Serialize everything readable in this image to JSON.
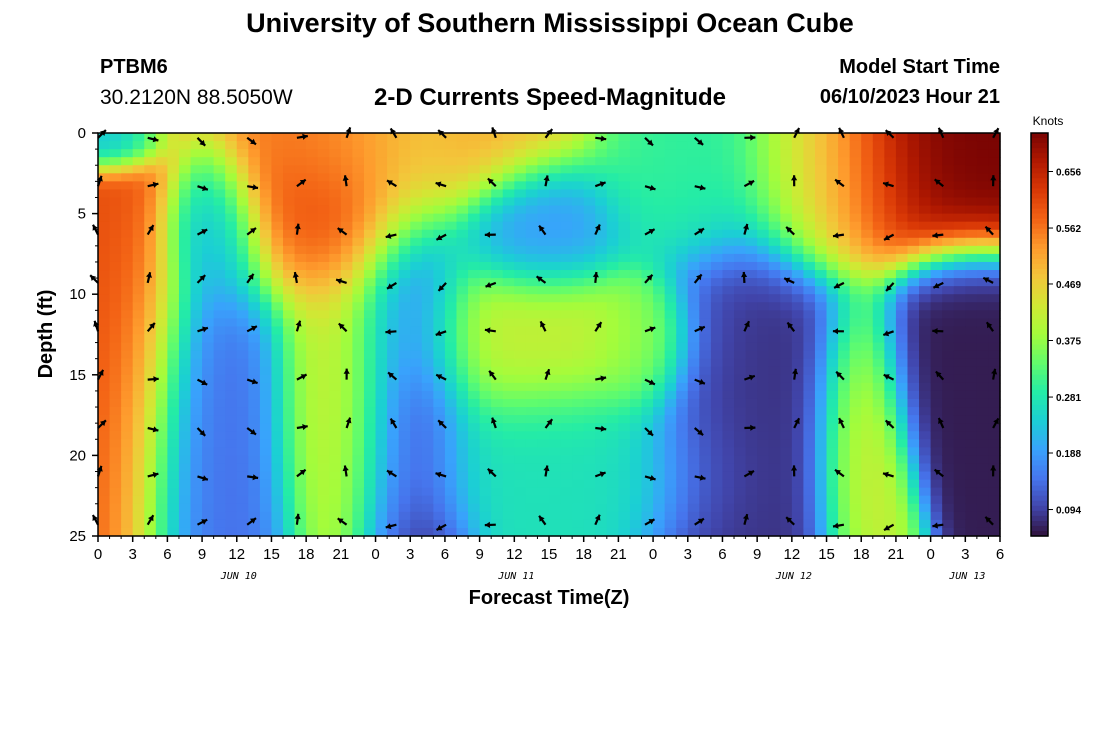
{
  "header": {
    "title": "University of Southern Mississippi Ocean Cube",
    "station_id": "PTBM6",
    "station_coords": "30.2120N  88.5050W",
    "subtitle": "2-D Currents Speed-Magnitude",
    "model_start_label": "Model Start Time",
    "model_start_value": "06/10/2023 Hour 21"
  },
  "footer": {
    "title": "University of Southern Mississippi Ocean Cube"
  },
  "chart_data": {
    "type": "heatmap",
    "title": "2-D Currents Speed-Magnitude",
    "xlabel": "Forecast Time(Z)",
    "ylabel": "Depth (ft)",
    "x_tick_labels": [
      "0",
      "3",
      "6",
      "9",
      "12",
      "15",
      "18",
      "21",
      "0",
      "3",
      "6",
      "9",
      "12",
      "15",
      "18",
      "21",
      "0",
      "3",
      "6",
      "9",
      "12",
      "15",
      "18",
      "21",
      "0",
      "3",
      "6"
    ],
    "x_day_labels": [
      {
        "label": "JUN 10",
        "tick_index": 4
      },
      {
        "label": "JUN 11",
        "tick_index": 12
      },
      {
        "label": "JUN 12",
        "tick_index": 20
      },
      {
        "label": "JUN 13",
        "tick_index": 25
      }
    ],
    "y_tick_labels": [
      "0",
      "5",
      "10",
      "15",
      "20",
      "25"
    ],
    "y_range": [
      0,
      25
    ],
    "x_range_hours": [
      0,
      78
    ],
    "colorbar": {
      "title": "Knots",
      "tick_labels": [
        "0.656",
        "0.562",
        "0.469",
        "0.375",
        "0.281",
        "0.188",
        "0.094"
      ],
      "ticks": [
        0.656,
        0.562,
        0.469,
        0.375,
        0.281,
        0.188,
        0.094
      ],
      "range": [
        0.05,
        0.72
      ],
      "colors": [
        "#30123b",
        "#4145ab",
        "#4675ed",
        "#39a2fc",
        "#1bcfd4",
        "#24eca6",
        "#61fc6c",
        "#a4fc3b",
        "#d1e834",
        "#f3c63a",
        "#fe9b2d",
        "#f36315",
        "#d93806",
        "#b11901",
        "#7a0403"
      ]
    },
    "speed_field_centers": [
      {
        "t": 1,
        "d": 0.5,
        "v": 0.16,
        "r": 3.2,
        "rd": 1.4
      },
      {
        "t": 2,
        "d": 13,
        "v": 0.6,
        "r": 4.5,
        "rd": 11
      },
      {
        "t": 10,
        "d": 18,
        "v": 0.14,
        "r": 5.5,
        "rd": 9
      },
      {
        "t": 10,
        "d": 6,
        "v": 0.2,
        "r": 3.0,
        "rd": 3.5
      },
      {
        "t": 20,
        "d": 4,
        "v": 0.6,
        "r": 8,
        "rd": 5
      },
      {
        "t": 21,
        "d": 17,
        "v": 0.43,
        "r": 4.5,
        "rd": 7
      },
      {
        "t": 27,
        "d": 16,
        "v": 0.06,
        "r": 4,
        "rd": 10
      },
      {
        "t": 27,
        "d": 1,
        "v": 0.5,
        "r": 10,
        "rd": 3
      },
      {
        "t": 38,
        "d": 6,
        "v": 0.18,
        "r": 5.5,
        "rd": 3.2
      },
      {
        "t": 36,
        "d": 13,
        "v": 0.42,
        "r": 10,
        "rd": 4
      },
      {
        "t": 38,
        "d": 20,
        "v": 0.27,
        "r": 10,
        "rd": 4
      },
      {
        "t": 47,
        "d": 13,
        "v": 0.38,
        "r": 3,
        "rd": 3
      },
      {
        "t": 57,
        "d": 16,
        "v": 0.08,
        "r": 7,
        "rd": 8
      },
      {
        "t": 51,
        "d": 3,
        "v": 0.3,
        "r": 6,
        "rd": 4
      },
      {
        "t": 62,
        "d": 3,
        "v": 0.4,
        "r": 5,
        "rd": 4
      },
      {
        "t": 66,
        "d": 18,
        "v": 0.46,
        "r": 3,
        "rd": 6
      },
      {
        "t": 74,
        "d": 14,
        "v": 0.06,
        "r": 5,
        "rd": 5
      },
      {
        "t": 73,
        "d": 2,
        "v": 0.72,
        "r": 6,
        "rd": 4
      },
      {
        "t": 66,
        "d": 3,
        "v": 0.62,
        "r": 5,
        "rd": 4
      }
    ]
  }
}
